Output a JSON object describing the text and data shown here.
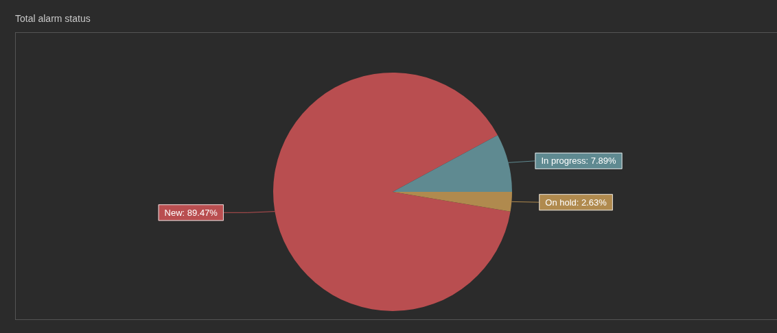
{
  "chart_data": {
    "type": "pie",
    "title": "Total alarm status",
    "categories": [
      "New",
      "In progress",
      "On hold"
    ],
    "values": [
      89.47,
      7.89,
      2.63
    ],
    "value_labels": [
      "89.47%",
      "7.89%",
      "2.63%"
    ],
    "colors": [
      "#b94e50",
      "#5f8a91",
      "#b08a4e"
    ],
    "legend": false
  }
}
